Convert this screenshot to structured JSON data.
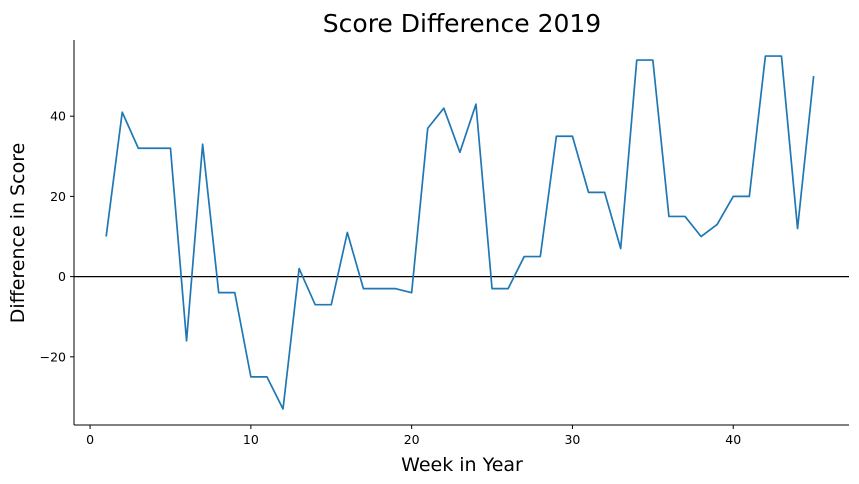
{
  "chart_data": {
    "type": "line",
    "title": "Score Difference 2019",
    "xlabel": "Week in Year",
    "ylabel": "Difference in Score",
    "xlim": [
      -1,
      47.2
    ],
    "ylim": [
      -37,
      59
    ],
    "x_ticks": [
      0,
      10,
      20,
      30,
      40
    ],
    "y_ticks": [
      -20,
      0,
      20,
      40
    ],
    "grid": false,
    "legend": "none",
    "reference_line_y": 0,
    "series": [
      {
        "color": "#1f77b4",
        "x": [
          1,
          2,
          3,
          4,
          5,
          6,
          7,
          8,
          9,
          10,
          11,
          12,
          13,
          14,
          15,
          16,
          17,
          18,
          19,
          20,
          21,
          22,
          23,
          24,
          25,
          26,
          27,
          28,
          29,
          30,
          31,
          32,
          33,
          34,
          35,
          36,
          37,
          38,
          39,
          40,
          41,
          42,
          43,
          44,
          45
        ],
        "values": [
          10,
          41,
          32,
          32,
          32,
          -16,
          33,
          -4,
          -4,
          -25,
          -25,
          -33,
          2,
          -7,
          -7,
          11,
          -3,
          -3,
          -3,
          -4,
          37,
          42,
          31,
          43,
          -3,
          -3,
          5,
          5,
          35,
          35,
          21,
          21,
          7,
          54,
          54,
          15,
          15,
          10,
          13,
          20,
          20,
          55,
          55,
          12,
          50
        ]
      }
    ]
  }
}
